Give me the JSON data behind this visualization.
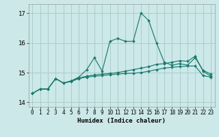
{
  "xlabel": "Humidex (Indice chaleur)",
  "background_color": "#cce8e8",
  "grid_color": "#aacccc",
  "line_color": "#1a7a6e",
  "xlim": [
    -0.5,
    23.5
  ],
  "ylim": [
    13.85,
    17.3
  ],
  "yticks": [
    14,
    15,
    16,
    17
  ],
  "xticks": [
    0,
    1,
    2,
    3,
    4,
    5,
    6,
    7,
    8,
    9,
    10,
    11,
    12,
    13,
    14,
    15,
    16,
    17,
    18,
    19,
    20,
    21,
    22,
    23
  ],
  "curves": [
    [
      14.3,
      14.45,
      14.45,
      14.8,
      14.65,
      14.7,
      14.8,
      14.85,
      14.88,
      14.9,
      14.93,
      14.95,
      14.97,
      14.98,
      15.0,
      15.05,
      15.1,
      15.15,
      15.18,
      15.2,
      15.22,
      15.22,
      14.9,
      14.85
    ],
    [
      14.3,
      14.45,
      14.45,
      14.8,
      14.65,
      14.72,
      14.82,
      14.88,
      14.92,
      14.95,
      14.97,
      15.0,
      15.05,
      15.1,
      15.15,
      15.2,
      15.28,
      15.3,
      15.35,
      15.4,
      15.38,
      15.55,
      15.05,
      14.88
    ],
    [
      14.3,
      14.45,
      14.45,
      14.8,
      14.65,
      14.72,
      14.85,
      15.1,
      15.5,
      15.05,
      16.05,
      16.15,
      16.05,
      16.05,
      17.0,
      16.75,
      16.0,
      15.35,
      15.25,
      15.3,
      15.25,
      15.5,
      15.08,
      14.95
    ]
  ]
}
